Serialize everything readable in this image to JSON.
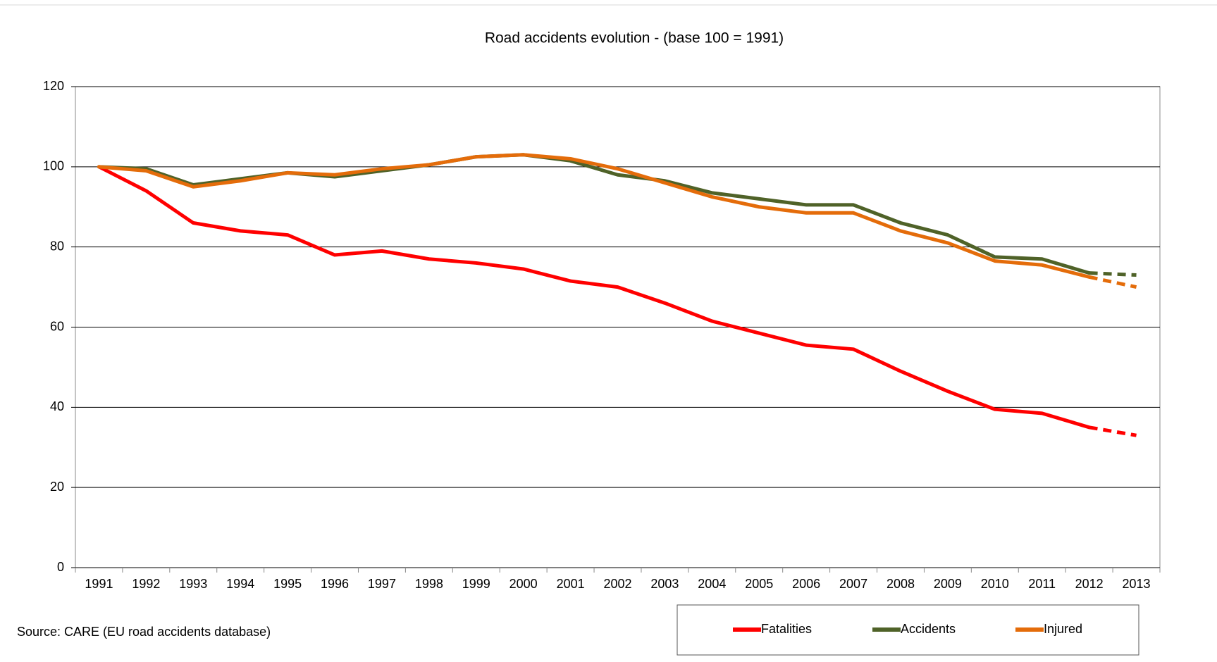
{
  "chart_data": {
    "type": "line",
    "title": "Road accidents evolution - (base 100 =  1991)",
    "source": "Source: CARE (EU road accidents database)",
    "categories": [
      "1991",
      "1992",
      "1993",
      "1994",
      "1995",
      "1996",
      "1997",
      "1998",
      "1999",
      "2000",
      "2001",
      "2002",
      "2003",
      "2004",
      "2005",
      "2006",
      "2007",
      "2008",
      "2009",
      "2010",
      "2011",
      "2012",
      "2013"
    ],
    "series": [
      {
        "name": "Fatalities",
        "color": "#ff0000",
        "values": [
          100,
          94,
          86,
          84,
          83,
          78,
          79,
          77,
          76,
          74.5,
          71.5,
          70,
          66,
          61.5,
          58.5,
          55.5,
          54.5,
          49,
          44,
          39.5,
          38.5,
          35,
          33
        ]
      },
      {
        "name": "Accidents",
        "color": "#4f6228",
        "values": [
          100,
          99.5,
          95.5,
          97,
          98.5,
          97.5,
          99,
          100.5,
          102.5,
          103,
          101.5,
          98,
          96.5,
          93.5,
          92,
          90.5,
          90.5,
          86,
          83,
          77.5,
          77,
          73.5,
          73
        ]
      },
      {
        "name": "Injured",
        "color": "#e46c0a",
        "values": [
          100,
          99,
          95,
          96.5,
          98.5,
          98,
          99.5,
          100.5,
          102.5,
          103,
          102,
          99.5,
          96,
          92.5,
          90,
          88.5,
          88.5,
          84,
          81,
          76.5,
          75.5,
          72.5,
          70
        ]
      }
    ],
    "dashed_last_segment": true,
    "ylim": [
      0,
      120
    ],
    "yticks": [
      0,
      20,
      40,
      60,
      80,
      100,
      120
    ],
    "grid": true,
    "legend": "bottom-right"
  }
}
